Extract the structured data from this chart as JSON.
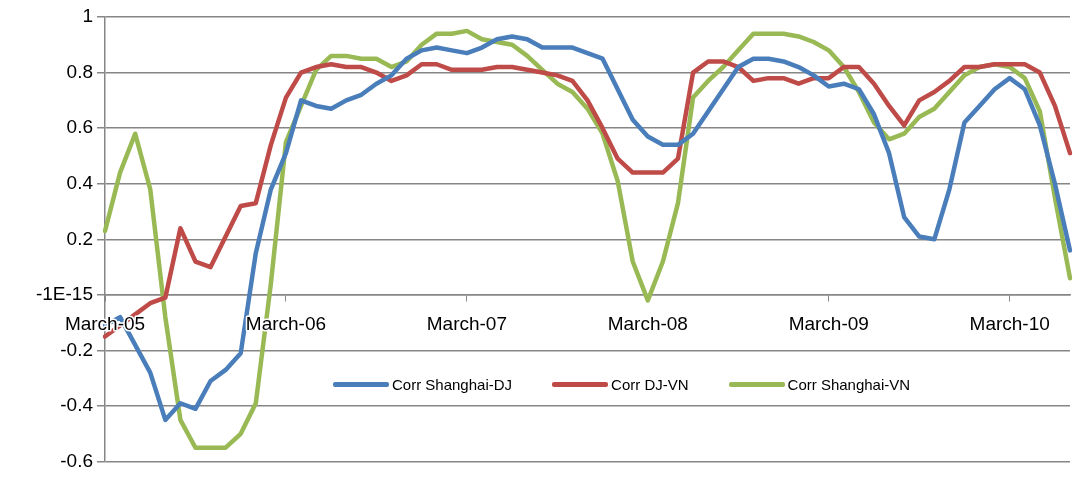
{
  "chart_data": {
    "type": "line",
    "categories": [
      "March-05",
      null,
      null,
      null,
      null,
      null,
      null,
      null,
      null,
      null,
      null,
      null,
      "March-06",
      null,
      null,
      null,
      null,
      null,
      null,
      null,
      null,
      null,
      null,
      null,
      "March-07",
      null,
      null,
      null,
      null,
      null,
      null,
      null,
      null,
      null,
      null,
      null,
      "March-08",
      null,
      null,
      null,
      null,
      null,
      null,
      null,
      null,
      null,
      null,
      null,
      "March-09",
      null,
      null,
      null,
      null,
      null,
      null,
      null,
      null,
      null,
      null,
      null,
      "March-10",
      null,
      null,
      null,
      null
    ],
    "series": [
      {
        "name": "Corr Shanghai-DJ",
        "color": "#4a7ebb",
        "values": [
          -0.11,
          -0.08,
          -0.18,
          -0.28,
          -0.45,
          -0.39,
          -0.41,
          -0.31,
          -0.27,
          -0.21,
          0.15,
          0.38,
          0.51,
          0.7,
          0.68,
          0.67,
          0.7,
          0.72,
          0.76,
          0.79,
          0.85,
          0.88,
          0.89,
          0.88,
          0.87,
          0.89,
          0.92,
          0.93,
          0.92,
          0.89,
          0.89,
          0.89,
          0.87,
          0.85,
          0.74,
          0.63,
          0.57,
          0.54,
          0.54,
          0.58,
          0.66,
          0.74,
          0.82,
          0.85,
          0.85,
          0.84,
          0.82,
          0.79,
          0.75,
          0.76,
          0.74,
          0.65,
          0.51,
          0.28,
          0.21,
          0.2,
          0.38,
          0.62,
          0.68,
          0.74,
          0.78,
          0.74,
          0.61,
          0.4,
          0.16
        ]
      },
      {
        "name": "Corr DJ-VN",
        "color": "#be4b48",
        "values": [
          -0.15,
          -0.11,
          -0.07,
          -0.03,
          -0.01,
          0.24,
          0.12,
          0.1,
          0.21,
          0.32,
          0.33,
          0.54,
          0.71,
          0.8,
          0.82,
          0.83,
          0.82,
          0.82,
          0.8,
          0.77,
          0.79,
          0.83,
          0.83,
          0.81,
          0.81,
          0.81,
          0.82,
          0.82,
          0.81,
          0.8,
          0.79,
          0.77,
          0.7,
          0.6,
          0.49,
          0.44,
          0.44,
          0.44,
          0.49,
          0.8,
          0.84,
          0.84,
          0.82,
          0.77,
          0.78,
          0.78,
          0.76,
          0.78,
          0.78,
          0.82,
          0.82,
          0.76,
          0.68,
          0.61,
          0.7,
          0.73,
          0.77,
          0.82,
          0.82,
          0.83,
          0.83,
          0.83,
          0.8,
          0.68,
          0.51
        ]
      },
      {
        "name": "Corr Shanghai-VN",
        "color": "#98b954",
        "values": [
          0.23,
          0.44,
          0.58,
          0.38,
          -0.08,
          -0.45,
          -0.55,
          -0.55,
          -0.55,
          -0.5,
          -0.39,
          0.04,
          0.55,
          0.68,
          0.81,
          0.86,
          0.86,
          0.85,
          0.85,
          0.82,
          0.84,
          0.9,
          0.94,
          0.94,
          0.95,
          0.92,
          0.91,
          0.9,
          0.86,
          0.81,
          0.76,
          0.73,
          0.67,
          0.58,
          0.41,
          0.12,
          -0.02,
          0.12,
          0.33,
          0.71,
          0.77,
          0.82,
          0.88,
          0.94,
          0.94,
          0.94,
          0.93,
          0.91,
          0.88,
          0.82,
          0.73,
          0.62,
          0.56,
          0.58,
          0.64,
          0.67,
          0.73,
          0.79,
          0.82,
          0.83,
          0.82,
          0.78,
          0.66,
          0.35,
          0.06
        ]
      }
    ],
    "ylim": [
      -0.6,
      1
    ],
    "yticks": [
      -0.6,
      -0.4,
      -0.2,
      {
        "value": 0,
        "label": "-1E-15"
      },
      0.2,
      0.4,
      0.6,
      0.8,
      1
    ],
    "grid": "y",
    "legend": "bottom",
    "marker": "none",
    "line_style": "solid"
  }
}
